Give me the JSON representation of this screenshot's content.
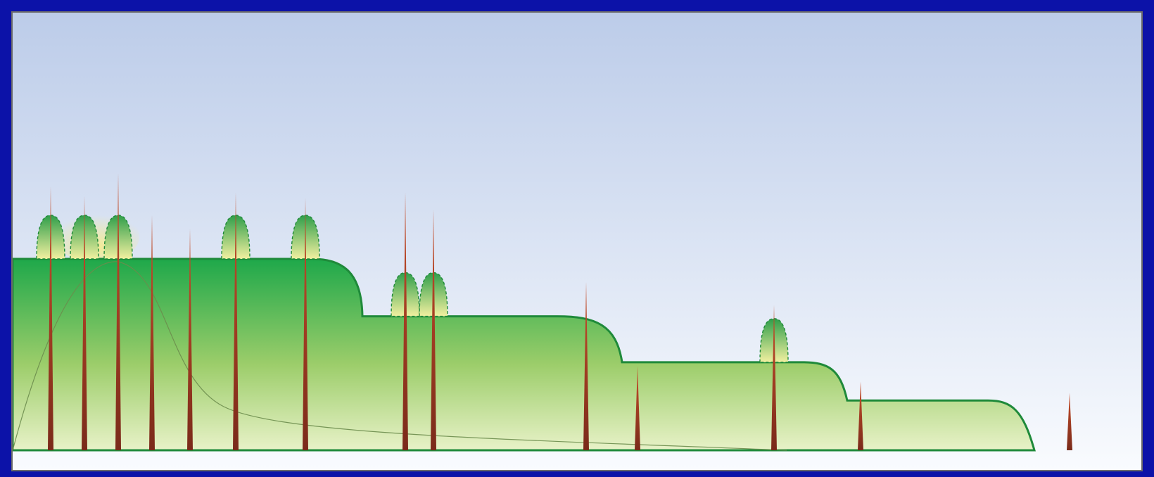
{
  "colors": {
    "frame": "#0c12a8",
    "sky_top": "#bccce9",
    "sky_bottom": "#f9fbfe",
    "plateau_outline": "#1f8a3a",
    "plateau_fill_top": "#1ea84a",
    "plateau_fill_bottom": "#e8f2c8",
    "bump_top": "#2f9e4a",
    "bump_bottom": "#f2f0a0",
    "spike_top": "#c9502c",
    "spike_bottom": "#7a2a1a",
    "decay_curve": "#6c8c4c",
    "yellow_glow": "#f6ec8a"
  },
  "plateau_levels": [
    1.0,
    0.7,
    0.46,
    0.26
  ],
  "spikes": [
    {
      "id": 1,
      "height": 1.38
    },
    {
      "id": 2,
      "height": 1.33
    },
    {
      "id": 3,
      "height": 1.45
    },
    {
      "id": 4,
      "height": 1.23
    },
    {
      "id": 5,
      "height": 1.16
    },
    {
      "id": 6,
      "height": 1.35
    },
    {
      "id": 7,
      "height": 1.32
    },
    {
      "id": 8,
      "height": 1.35
    },
    {
      "id": 9,
      "height": 1.26
    },
    {
      "id": 10,
      "height": 0.88
    },
    {
      "id": 11,
      "height": 0.44
    },
    {
      "id": 12,
      "height": 0.76
    },
    {
      "id": 13,
      "height": 0.36
    },
    {
      "id": 14,
      "height": 0.3
    }
  ],
  "bumps": [
    {
      "id": 1,
      "level": 0
    },
    {
      "id": 2,
      "level": 0
    },
    {
      "id": 3,
      "level": 0
    },
    {
      "id": 4,
      "level": 0
    },
    {
      "id": 5,
      "level": 0
    },
    {
      "id": 6,
      "level": 1
    },
    {
      "id": 7,
      "level": 1
    },
    {
      "id": 8,
      "level": 2
    }
  ]
}
